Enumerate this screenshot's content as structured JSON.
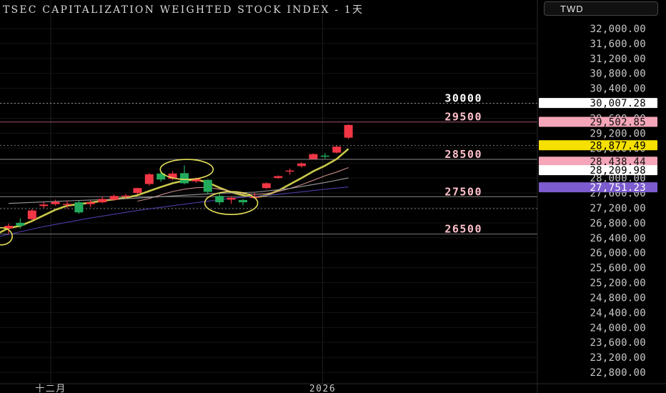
{
  "header": {
    "title": "TSEC CAPITALIZATION WEIGHTED STOCK INDEX  -  1天",
    "currency": "TWD"
  },
  "chart_data": {
    "type": "candlestick",
    "y_range": [
      22700,
      32200
    ],
    "y_ticks": [
      "32,000.00",
      "31,600.00",
      "31,200.00",
      "30,800.00",
      "30,400.00",
      "30,000.00",
      "29,600.00",
      "29,200.00",
      "28,800.00",
      "28,400.00",
      "28,000.00",
      "27,600.00",
      "27,200.00",
      "26,800.00",
      "26,400.00",
      "26,000.00",
      "25,600.00",
      "25,200.00",
      "24,800.00",
      "24,400.00",
      "24,000.00",
      "23,600.00",
      "23,200.00",
      "22,800.00"
    ],
    "x_labels": [
      {
        "label": "十二月",
        "index": 3.6
      },
      {
        "label": "2026",
        "index": 26.8
      }
    ],
    "candles": [
      {
        "o": 26650,
        "h": 26780,
        "l": 26500,
        "c": 26720
      },
      {
        "o": 26800,
        "h": 26920,
        "l": 26650,
        "c": 26720
      },
      {
        "o": 26900,
        "h": 27170,
        "l": 26870,
        "c": 27130
      },
      {
        "o": 27250,
        "h": 27350,
        "l": 27200,
        "c": 27290
      },
      {
        "o": 27300,
        "h": 27420,
        "l": 27260,
        "c": 27360
      },
      {
        "o": 27290,
        "h": 27390,
        "l": 27180,
        "c": 27310
      },
      {
        "o": 27350,
        "h": 27390,
        "l": 27040,
        "c": 27080
      },
      {
        "o": 27300,
        "h": 27400,
        "l": 27220,
        "c": 27350
      },
      {
        "o": 27350,
        "h": 27500,
        "l": 27320,
        "c": 27440
      },
      {
        "o": 27420,
        "h": 27560,
        "l": 27390,
        "c": 27520
      },
      {
        "o": 27500,
        "h": 27570,
        "l": 27450,
        "c": 27530
      },
      {
        "o": 27600,
        "h": 27740,
        "l": 27560,
        "c": 27730
      },
      {
        "o": 27840,
        "h": 28130,
        "l": 27800,
        "c": 28100
      },
      {
        "o": 28120,
        "h": 28200,
        "l": 27900,
        "c": 27960
      },
      {
        "o": 27980,
        "h": 28180,
        "l": 27940,
        "c": 28120
      },
      {
        "o": 28130,
        "h": 28340,
        "l": 27830,
        "c": 27860
      },
      {
        "o": 27910,
        "h": 28010,
        "l": 27870,
        "c": 27990
      },
      {
        "o": 27950,
        "h": 27970,
        "l": 27580,
        "c": 27630
      },
      {
        "o": 27520,
        "h": 27590,
        "l": 27280,
        "c": 27350
      },
      {
        "o": 27420,
        "h": 27510,
        "l": 27310,
        "c": 27470
      },
      {
        "o": 27410,
        "h": 27440,
        "l": 27270,
        "c": 27350
      },
      {
        "o": 27480,
        "h": 27600,
        "l": 27450,
        "c": 27500
      },
      {
        "o": 27730,
        "h": 27880,
        "l": 27710,
        "c": 27860
      },
      {
        "o": 28000,
        "h": 28070,
        "l": 27980,
        "c": 28050
      },
      {
        "o": 28190,
        "h": 28250,
        "l": 28090,
        "c": 28200
      },
      {
        "o": 28320,
        "h": 28420,
        "l": 28280,
        "c": 28390
      },
      {
        "o": 28510,
        "h": 28660,
        "l": 28490,
        "c": 28640
      },
      {
        "o": 28600,
        "h": 28670,
        "l": 28520,
        "c": 28580
      },
      {
        "o": 28680,
        "h": 28860,
        "l": 28660,
        "c": 28840
      },
      {
        "o": 29080,
        "h": 29440,
        "l": 29040,
        "c": 29420
      }
    ],
    "key_levels": [
      {
        "label": "30000",
        "value": 30000,
        "color": "#ffffff"
      },
      {
        "label": "29500",
        "value": 29500,
        "color": "#ffc0cb"
      },
      {
        "label": "28500",
        "value": 28500,
        "color": "#ffc0cb"
      },
      {
        "label": "27500",
        "value": 27500,
        "color": "#ffc0cb"
      },
      {
        "label": "26500",
        "value": 26500,
        "color": "#ffc0cb"
      }
    ],
    "price_tags": [
      {
        "label": "30,007.28",
        "value": 30007.28,
        "bg": "#ffffff",
        "fg": "#000000"
      },
      {
        "label": "29,502.85",
        "value": 29502.85,
        "bg": "#f4a6b8",
        "fg": "#111111"
      },
      {
        "label": "28,877.49",
        "value": 28877.49,
        "bg": "#f5e000",
        "fg": "#000000"
      },
      {
        "label": "28,438.44",
        "value": 28438.44,
        "bg": "#f4a6b8",
        "fg": "#111111"
      },
      {
        "label": "28,209.98",
        "value": 28209.98,
        "bg": "#ffffff",
        "fg": "#000000"
      },
      {
        "label": "27,751.23",
        "value": 27751.23,
        "bg": "#7c5ccf",
        "fg": "#ffffff"
      }
    ],
    "moving_averages": [
      {
        "color": "#c9c84a",
        "points": [
          [
            -1,
            26500
          ],
          [
            0,
            26660
          ],
          [
            1,
            26720
          ],
          [
            2,
            26850
          ],
          [
            3,
            27000
          ],
          [
            4,
            27150
          ],
          [
            5,
            27260
          ],
          [
            6,
            27300
          ],
          [
            7,
            27340
          ],
          [
            8,
            27390
          ],
          [
            9,
            27430
          ],
          [
            10,
            27470
          ],
          [
            11,
            27540
          ],
          [
            12,
            27650
          ],
          [
            13,
            27760
          ],
          [
            14,
            27860
          ],
          [
            15,
            27930
          ],
          [
            16,
            27960
          ],
          [
            17,
            27880
          ],
          [
            18,
            27740
          ],
          [
            19,
            27620
          ],
          [
            20,
            27540
          ],
          [
            21,
            27480
          ],
          [
            22,
            27540
          ],
          [
            23,
            27660
          ],
          [
            24,
            27830
          ],
          [
            25,
            28000
          ],
          [
            26,
            28180
          ],
          [
            27,
            28330
          ],
          [
            28,
            28510
          ],
          [
            29,
            28780
          ]
        ]
      },
      {
        "color": "#c98a8a",
        "points": [
          [
            11,
            27380
          ],
          [
            12,
            27450
          ],
          [
            13,
            27550
          ],
          [
            14,
            27640
          ],
          [
            15,
            27700
          ],
          [
            16,
            27740
          ],
          [
            17,
            27750
          ],
          [
            18,
            27700
          ],
          [
            19,
            27640
          ],
          [
            20,
            27580
          ],
          [
            21,
            27560
          ],
          [
            22,
            27580
          ],
          [
            23,
            27640
          ],
          [
            24,
            27720
          ],
          [
            25,
            27820
          ],
          [
            26,
            27940
          ],
          [
            27,
            28060
          ],
          [
            28,
            28160
          ],
          [
            29,
            28280
          ]
        ]
      },
      {
        "color": "#9a9a9a",
        "points": [
          [
            0,
            27320
          ],
          [
            3,
            27360
          ],
          [
            6,
            27400
          ],
          [
            9,
            27430
          ],
          [
            12,
            27480
          ],
          [
            15,
            27540
          ],
          [
            18,
            27590
          ],
          [
            21,
            27620
          ],
          [
            24,
            27720
          ],
          [
            27,
            27880
          ],
          [
            29,
            28000
          ]
        ]
      },
      {
        "color": "#4a3ca8",
        "points": [
          [
            -1,
            26420
          ],
          [
            3,
            26700
          ],
          [
            7,
            26930
          ],
          [
            11,
            27130
          ],
          [
            15,
            27300
          ],
          [
            19,
            27460
          ],
          [
            23,
            27560
          ],
          [
            27,
            27700
          ],
          [
            29,
            27760
          ]
        ]
      }
    ],
    "annotations": [
      {
        "type": "ellipse",
        "index": 15.2,
        "value": 28230,
        "rx": 37,
        "ry": 14
      },
      {
        "type": "ellipse",
        "index": 19.0,
        "value": 27330,
        "rx": 37,
        "ry": 16
      },
      {
        "type": "ellipse",
        "index": -0.6,
        "value": 26440,
        "rx": 15,
        "ry": 12
      }
    ],
    "colors": {
      "up": "#f23645",
      "down": "#22ab5c",
      "annotation": "#e6e05a"
    }
  }
}
